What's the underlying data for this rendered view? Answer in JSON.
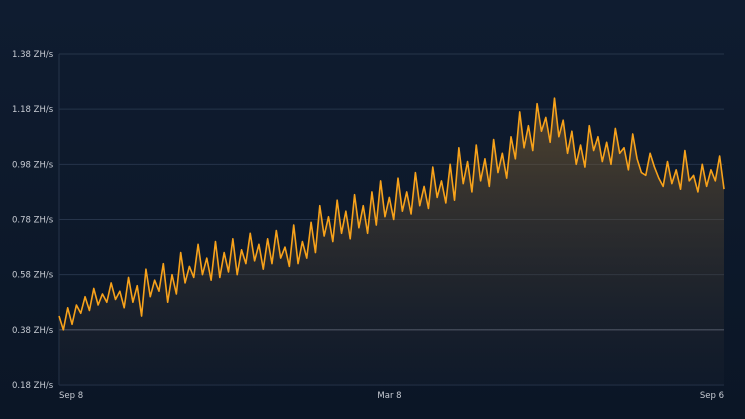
{
  "chart_data": {
    "type": "area",
    "title": "",
    "xlabel": "",
    "ylabel": "",
    "unit": "ZH/s",
    "ylim": [
      0.18,
      1.38
    ],
    "y_ticks": [
      "1.38 ZH/s",
      "1.18 ZH/s",
      "0.98 ZH/s",
      "0.78 ZH/s",
      "0.58 ZH/s",
      "0.38 ZH/s",
      "0.18 ZH/s"
    ],
    "y_tick_values": [
      1.38,
      1.18,
      0.98,
      0.78,
      0.58,
      0.38,
      0.18
    ],
    "x_ticks": [
      "Sep 8",
      "Mar 8",
      "Sep 6"
    ],
    "x_tick_positions": [
      0,
      0.497,
      1
    ],
    "grid": true,
    "colors": {
      "line": "#f7a21b",
      "fill_top": "#7a5a2a",
      "grid": "#26344a",
      "baseline": "#5a6578"
    },
    "series": [
      {
        "values": [
          0.43,
          0.38,
          0.46,
          0.4,
          0.47,
          0.44,
          0.5,
          0.45,
          0.53,
          0.47,
          0.51,
          0.48,
          0.55,
          0.49,
          0.52,
          0.46,
          0.57,
          0.48,
          0.54,
          0.43,
          0.6,
          0.5,
          0.56,
          0.52,
          0.62,
          0.48,
          0.58,
          0.51,
          0.66,
          0.55,
          0.61,
          0.57,
          0.69,
          0.58,
          0.64,
          0.56,
          0.7,
          0.57,
          0.66,
          0.59,
          0.71,
          0.58,
          0.67,
          0.62,
          0.73,
          0.63,
          0.69,
          0.6,
          0.71,
          0.62,
          0.74,
          0.64,
          0.68,
          0.61,
          0.76,
          0.62,
          0.7,
          0.64,
          0.77,
          0.66,
          0.83,
          0.72,
          0.79,
          0.7,
          0.85,
          0.73,
          0.81,
          0.71,
          0.87,
          0.75,
          0.83,
          0.73,
          0.88,
          0.76,
          0.92,
          0.79,
          0.86,
          0.78,
          0.93,
          0.81,
          0.88,
          0.8,
          0.95,
          0.83,
          0.9,
          0.82,
          0.97,
          0.86,
          0.92,
          0.84,
          0.98,
          0.85,
          1.04,
          0.91,
          0.99,
          0.88,
          1.05,
          0.92,
          1.0,
          0.9,
          1.07,
          0.95,
          1.02,
          0.93,
          1.08,
          1.0,
          1.17,
          1.04,
          1.12,
          1.03,
          1.2,
          1.1,
          1.15,
          1.06,
          1.22,
          1.08,
          1.14,
          1.02,
          1.1,
          0.98,
          1.05,
          0.97,
          1.12,
          1.03,
          1.08,
          0.99,
          1.06,
          0.98,
          1.11,
          1.02,
          1.04,
          0.96,
          1.09,
          1.0,
          0.95,
          0.94,
          1.02,
          0.97,
          0.93,
          0.9,
          0.99,
          0.91,
          0.96,
          0.89,
          1.03,
          0.92,
          0.94,
          0.88,
          0.98,
          0.9,
          0.96,
          0.92,
          1.01,
          0.89
        ]
      }
    ]
  }
}
